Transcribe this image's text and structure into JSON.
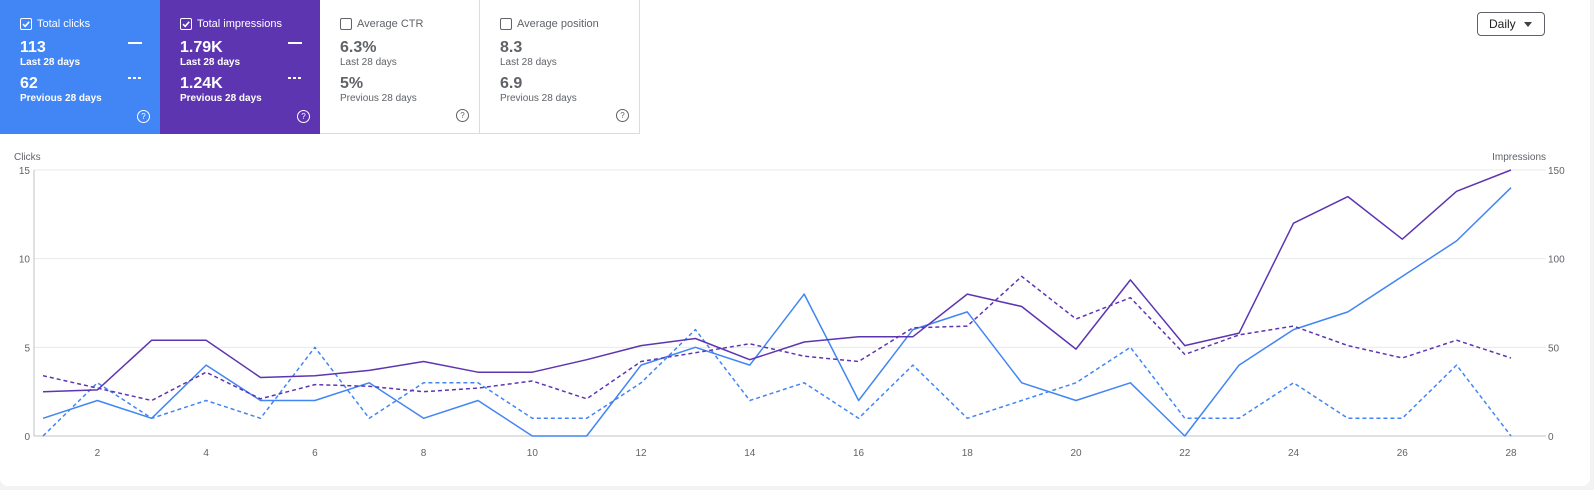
{
  "cards": [
    {
      "key": "clicks",
      "label": "Total clicks",
      "checked": true,
      "value": "113",
      "value_sub": "Last 28 days",
      "prev": "62",
      "prev_sub": "Previous 28 days"
    },
    {
      "key": "impr",
      "label": "Total impressions",
      "checked": true,
      "value": "1.79K",
      "value_sub": "Last 28 days",
      "prev": "1.24K",
      "prev_sub": "Previous 28 days"
    },
    {
      "key": "ctr",
      "label": "Average CTR",
      "checked": false,
      "value": "6.3%",
      "value_sub": "Last 28 days",
      "prev": "5%",
      "prev_sub": "Previous 28 days"
    },
    {
      "key": "pos",
      "label": "Average position",
      "checked": false,
      "value": "8.3",
      "value_sub": "Last 28 days",
      "prev": "6.9",
      "prev_sub": "Previous 28 days"
    }
  ],
  "help_glyph": "?",
  "granularity": {
    "selected": "Daily"
  },
  "chart_data": {
    "type": "line",
    "ylabel_left": "Clicks",
    "ylabel_right": "Impressions",
    "x": [
      1,
      2,
      3,
      4,
      5,
      6,
      7,
      8,
      9,
      10,
      11,
      12,
      13,
      14,
      15,
      16,
      17,
      18,
      19,
      20,
      21,
      22,
      23,
      24,
      25,
      26,
      27,
      28
    ],
    "x_ticks": [
      2,
      4,
      6,
      8,
      10,
      12,
      14,
      16,
      18,
      20,
      22,
      24,
      26,
      28
    ],
    "left_ticks": [
      0,
      5,
      10,
      15
    ],
    "right_ticks": [
      0,
      50,
      100,
      150
    ],
    "ylim_left": [
      0,
      15
    ],
    "ylim_right": [
      0,
      150
    ],
    "grid": true,
    "colors": {
      "clicks": "#4285f4",
      "impressions": "#5e35b1"
    },
    "series": [
      {
        "key": "clicks",
        "axis": "left",
        "style": "solid",
        "color": "#4285f4",
        "values": [
          1,
          2,
          1,
          4,
          2,
          2,
          3,
          1,
          2,
          0,
          0,
          4,
          5,
          4,
          8,
          2,
          6,
          7,
          3,
          2,
          3,
          0,
          4,
          6,
          7,
          9,
          11,
          14
        ]
      },
      {
        "key": "clicks-prev",
        "axis": "left",
        "style": "dashed",
        "color": "#4285f4",
        "values": [
          0,
          3,
          1,
          2,
          1,
          5,
          1,
          3,
          3,
          1,
          1,
          3,
          6,
          2,
          3,
          1,
          4,
          1,
          2,
          3,
          5,
          1,
          1,
          3,
          1,
          1,
          4,
          0
        ]
      },
      {
        "key": "impressions",
        "axis": "right",
        "style": "solid",
        "color": "#5e35b1",
        "values": [
          25,
          26,
          54,
          54,
          33,
          34,
          37,
          42,
          36,
          36,
          43,
          51,
          55,
          43,
          53,
          56,
          56,
          80,
          73,
          49,
          88,
          51,
          58,
          120,
          135,
          111,
          138,
          150
        ]
      },
      {
        "key": "impressions-prev",
        "axis": "right",
        "style": "dashed",
        "color": "#5e35b1",
        "values": [
          34,
          27,
          20,
          36,
          21,
          29,
          28,
          25,
          27,
          31,
          21,
          42,
          47,
          52,
          45,
          42,
          61,
          62,
          90,
          66,
          78,
          46,
          57,
          62,
          51,
          44,
          54,
          44
        ]
      }
    ]
  }
}
